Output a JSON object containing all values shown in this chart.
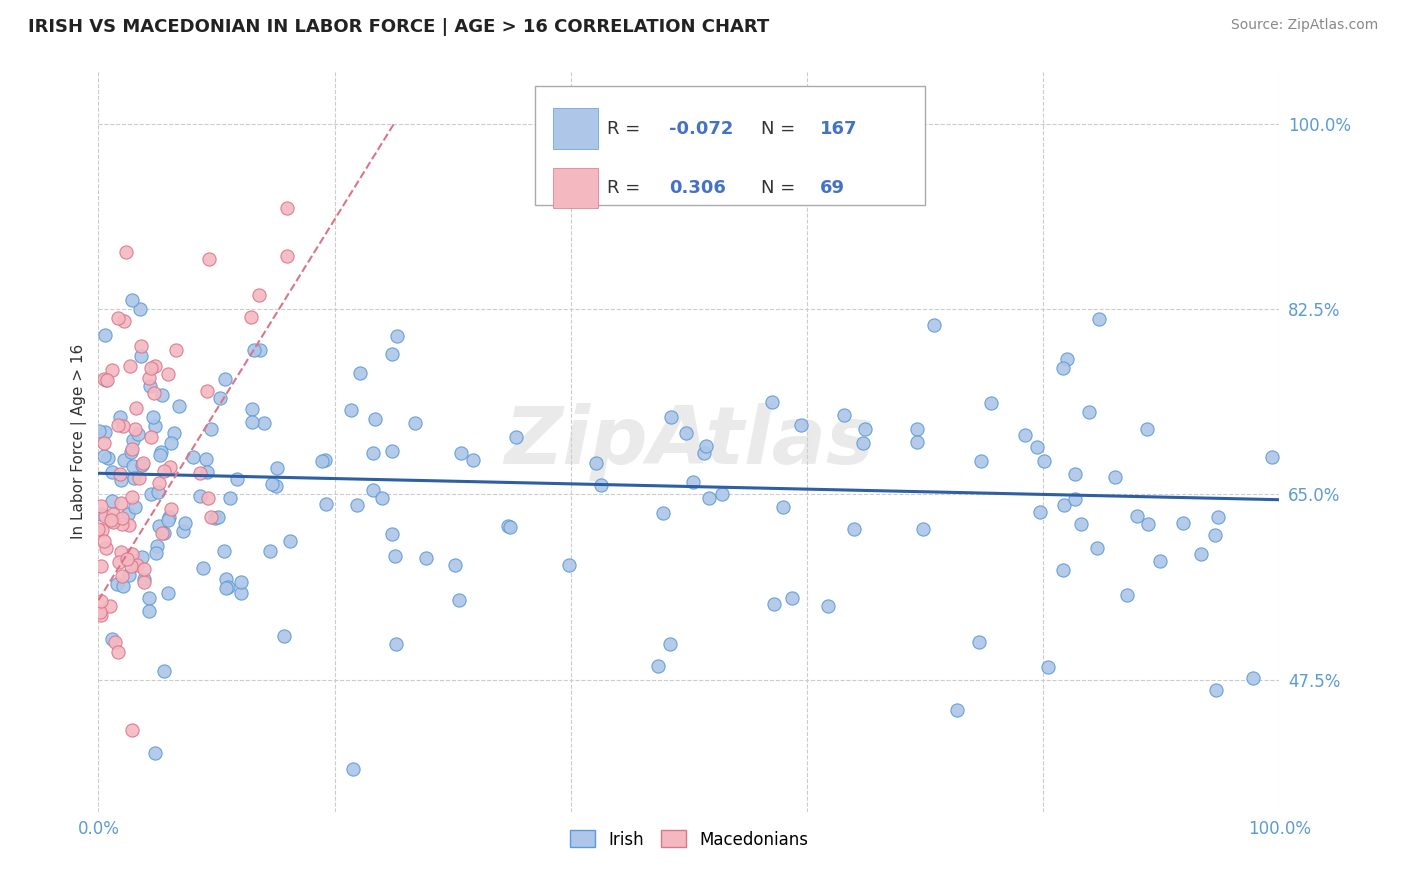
{
  "title": "IRISH VS MACEDONIAN IN LABOR FORCE | AGE > 16 CORRELATION CHART",
  "source_text": "Source: ZipAtlas.com",
  "x_min": 0.0,
  "x_max": 100.0,
  "y_min": 35.0,
  "y_max": 105.0,
  "ylabel_ticks": [
    47.5,
    65.0,
    82.5,
    100.0
  ],
  "ylabel_tick_labels": [
    "47.5%",
    "65.0%",
    "82.5%",
    "100.0%"
  ],
  "irish_R": -0.072,
  "irish_N": 167,
  "macedonian_R": 0.306,
  "macedonian_N": 69,
  "irish_color": "#aec6e8",
  "irish_edge_color": "#5b9bd5",
  "macedonian_color": "#f4b8c1",
  "macedonian_edge_color": "#d9768a",
  "irish_trend_color": "#2e5fa3",
  "macedonian_trend_color": "#d9768a",
  "watermark": "ZipAtlas",
  "watermark_color": "#cccccc",
  "background_color": "#ffffff",
  "grid_color": "#cccccc",
  "tick_label_color": "#5b9bd5",
  "legend_R_color": "#4472c4",
  "legend_N_color": "#4472c4",
  "irish_trend_start_x": 0.0,
  "irish_trend_start_y": 67.0,
  "irish_trend_end_x": 100.0,
  "irish_trend_end_y": 64.5,
  "mac_trend_start_x": 0.0,
  "mac_trend_start_y": 55.0,
  "mac_trend_end_x": 25.0,
  "mac_trend_end_y": 100.0
}
